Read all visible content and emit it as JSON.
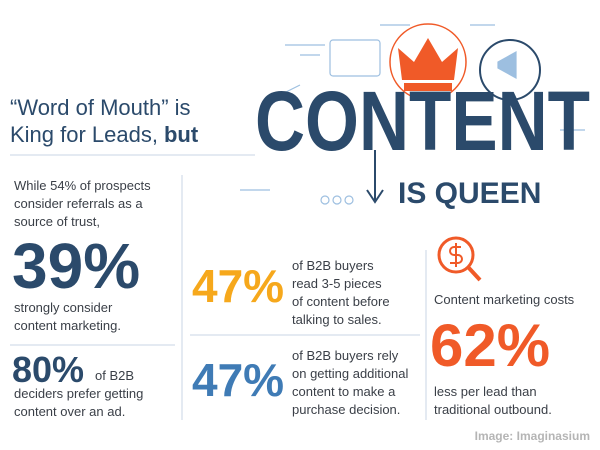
{
  "header": {
    "lines": [
      "“Word of Mouth” is",
      "King for Leads,"
    ],
    "emphasis": "but"
  },
  "title": {
    "word": "CONTENT",
    "subtitle": "IS QUEEN"
  },
  "stats": [
    {
      "intro": [
        "While 54% of prospects",
        "consider referrals as a",
        "source of trust,"
      ],
      "figure": "39%",
      "text": [
        "strongly consider",
        "content marketing."
      ]
    },
    {
      "figure": "80%",
      "text": [
        "of B2B",
        "deciders prefer getting",
        "content over an ad."
      ]
    },
    {
      "figure": "47%",
      "text": [
        "of B2B buyers",
        "read 3-5 pieces",
        "of content before",
        "talking to sales."
      ]
    },
    {
      "figure": "47%",
      "text": [
        "of B2B buyers rely",
        "on getting additional",
        "content to make a",
        "purchase decision."
      ]
    },
    {
      "intro": [
        "Content marketing costs"
      ],
      "figure": "62%",
      "text": [
        "less per lead than",
        "traditional outbound."
      ]
    }
  ],
  "credit": "Image: Imaginasium"
}
